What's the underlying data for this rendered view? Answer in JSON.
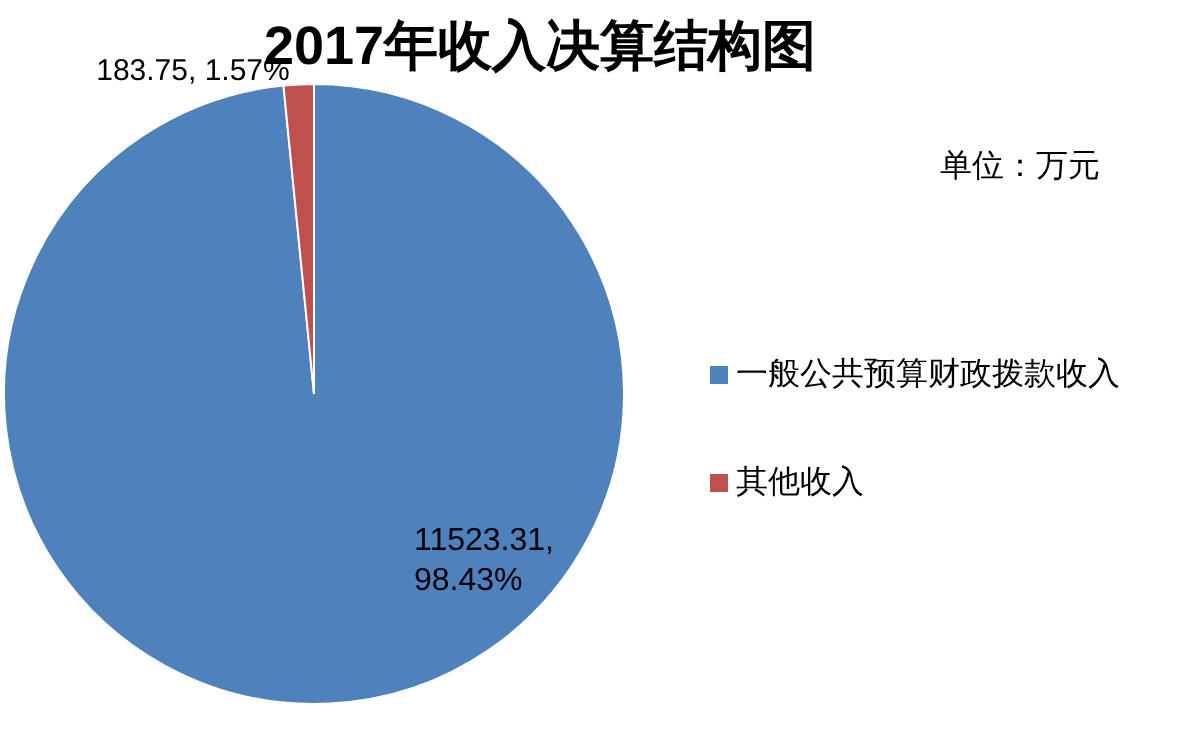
{
  "chart_data": {
    "type": "pie",
    "title": "2017年收入决算结构图",
    "annotations": [
      "单位：万元"
    ],
    "categories": [
      "一般公共预算财政拨款收入",
      "其他收入"
    ],
    "values": [
      11523.31,
      183.75
    ],
    "colors": [
      "#4f81bd",
      "#c0504d"
    ],
    "value_labels": [
      "11523.31, 98.43%",
      "183.75, 1.57%"
    ],
    "legend": "right"
  }
}
